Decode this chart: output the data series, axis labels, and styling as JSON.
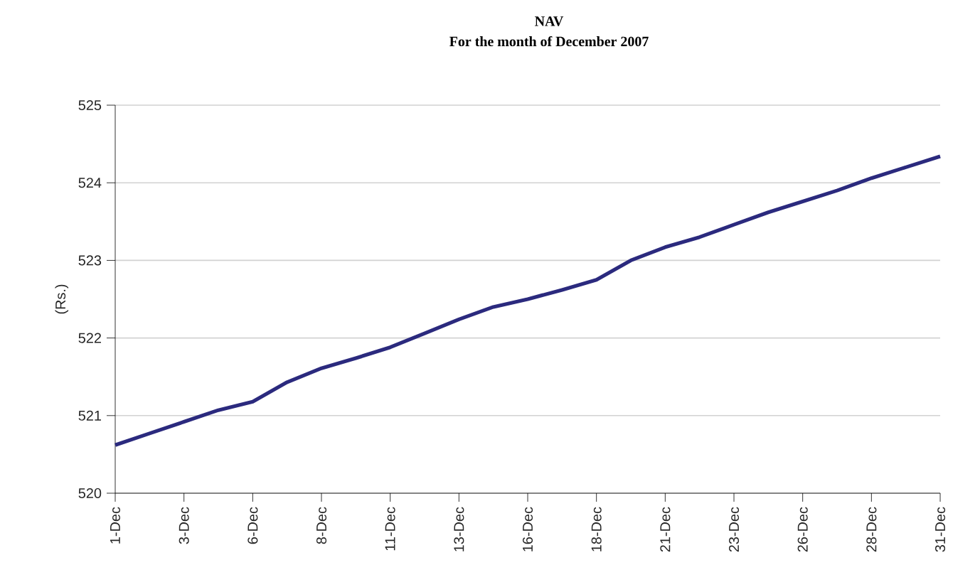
{
  "chart_data": {
    "type": "line",
    "title": "NAV",
    "subtitle": "For the month of December 2007",
    "ylabel": "(Rs.)",
    "categories": [
      "1-Dec",
      null,
      "3-Dec",
      null,
      "6-Dec",
      null,
      "8-Dec",
      null,
      "11-Dec",
      null,
      "13-Dec",
      null,
      "16-Dec",
      null,
      "18-Dec",
      null,
      "21-Dec",
      null,
      "23-Dec",
      null,
      "26-Dec",
      null,
      "28-Dec",
      null,
      "31-Dec"
    ],
    "series": [
      {
        "color": "#2b2a7e",
        "values": [
          520.62,
          520.77,
          520.92,
          521.07,
          521.18,
          521.43,
          521.61,
          521.74,
          521.88,
          522.06,
          522.24,
          522.4,
          522.5,
          522.62,
          522.75,
          523.0,
          523.17,
          523.3,
          523.46,
          523.62,
          523.76,
          523.9,
          524.06,
          524.2,
          524.34
        ]
      }
    ],
    "ylim": [
      520,
      525
    ],
    "yticks": [
      520,
      521,
      522,
      523,
      524,
      525
    ],
    "grid": "y",
    "marker": "none",
    "line_style": "solid"
  }
}
